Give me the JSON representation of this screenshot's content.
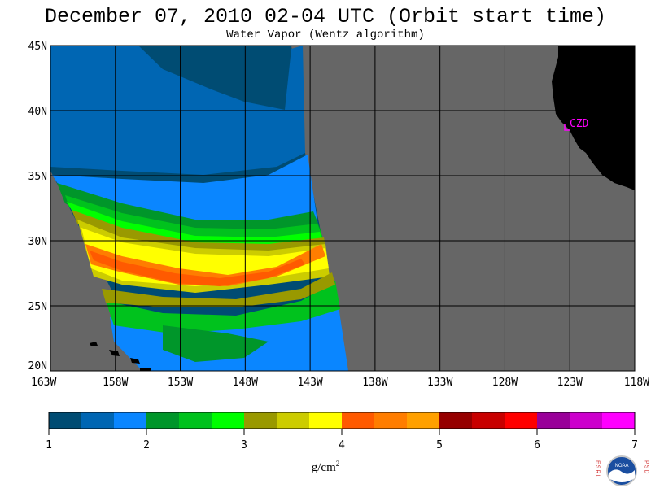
{
  "title": "December 07, 2010  02-04 UTC  (Orbit start time)",
  "subtitle": "Water Vapor (Wentz algorithm)",
  "map": {
    "lat_labels": [
      "45N",
      "40N",
      "35N",
      "30N",
      "25N",
      "20N"
    ],
    "lon_labels": [
      "163W",
      "158W",
      "153W",
      "148W",
      "143W",
      "138W",
      "133W",
      "128W",
      "123W",
      "118W"
    ],
    "station_label": "CZD",
    "colors": {
      "ocean_missing": "#666666",
      "land": "#000000",
      "grid": "#000000",
      "station": "#ff00ff"
    }
  },
  "colorbar": {
    "tick_labels": [
      "1",
      "2",
      "3",
      "4",
      "5",
      "6",
      "7"
    ],
    "units_text": "g/cm",
    "units_sup": "2",
    "colors": [
      "#004c73",
      "#0066b3",
      "#0a86ff",
      "#00962a",
      "#00c21d",
      "#00ff00",
      "#999900",
      "#cccc00",
      "#ffff00",
      "#ff5a00",
      "#ff7d00",
      "#ffa000",
      "#960000",
      "#c80000",
      "#ff0000",
      "#990099",
      "#cc00cc",
      "#ff00ff"
    ]
  },
  "logo": {
    "left_letters": "ESRL",
    "right_letters": "PSD",
    "inner_text": "NOAA"
  }
}
